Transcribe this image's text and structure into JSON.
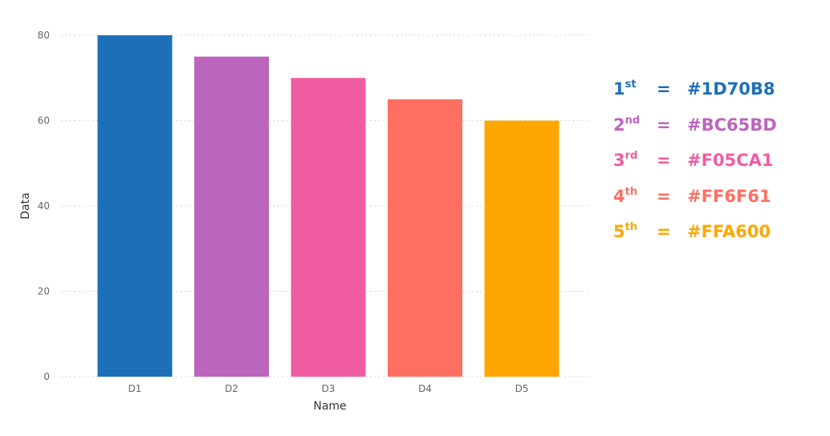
{
  "chart_data": {
    "type": "bar",
    "categories": [
      "D1",
      "D2",
      "D3",
      "D4",
      "D5"
    ],
    "values": [
      80,
      75,
      70,
      65,
      60
    ],
    "colors": [
      "#1D70B8",
      "#BC65BD",
      "#F05CA1",
      "#FF6F61",
      "#FFA600"
    ],
    "xlabel": "Name",
    "ylabel": "Data",
    "ylim": [
      0,
      80
    ],
    "yticks": [
      0,
      20,
      40,
      60,
      80
    ],
    "grid": true,
    "grid_style": "dotted"
  },
  "legend": {
    "placement": "right",
    "items": [
      {
        "num": "1",
        "suffix": "st",
        "eq": "=",
        "hex": "#1D70B8",
        "color": "#1D70B8"
      },
      {
        "num": "2",
        "suffix": "nd",
        "eq": "=",
        "hex": "#BC65BD",
        "color": "#BC65BD"
      },
      {
        "num": "3",
        "suffix": "rd",
        "eq": "=",
        "hex": "#F05CA1",
        "color": "#F05CA1"
      },
      {
        "num": "4",
        "suffix": "th",
        "eq": "=",
        "hex": "#FF6F61",
        "color": "#FF6F61"
      },
      {
        "num": "5",
        "suffix": "th",
        "eq": "=",
        "hex": "#FFA600",
        "color": "#FFA600"
      }
    ]
  }
}
